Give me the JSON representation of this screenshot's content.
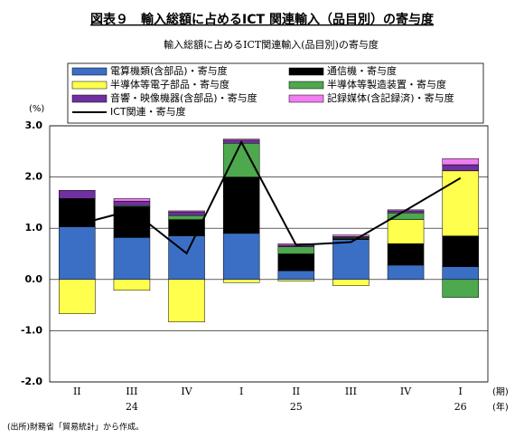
{
  "chart_data": {
    "type": "stacked-bar-line",
    "title": "図表９　輸入総額に占めるICT 関連輸入（品目別）の寄与度",
    "subtitle": "輸入総額に占めるICT関連輸入(品目別)の寄与度",
    "y_unit": "(%)",
    "x_unit": "(期)",
    "year_unit": "(年)",
    "source": "(出所)財務省「貿易統計」から作成。",
    "categories": [
      "II",
      "III",
      "IV",
      "I",
      "II",
      "III",
      "IV",
      "I"
    ],
    "years": [
      null,
      "24",
      null,
      null,
      "25",
      null,
      null,
      "26"
    ],
    "series": [
      {
        "name": "電算機類(含部品)・寄与度",
        "color": "#3b6fc5",
        "values": [
          1.03,
          0.82,
          0.85,
          0.9,
          0.17,
          0.78,
          0.28,
          0.25
        ]
      },
      {
        "name": "通信機・寄与度",
        "color": "#000000",
        "values": [
          0.55,
          0.6,
          0.32,
          1.1,
          0.33,
          0.02,
          0.42,
          0.6
        ]
      },
      {
        "name": "半導体等電子部品・寄与度",
        "color": "#ffff4d",
        "values": [
          -0.67,
          -0.21,
          -0.83,
          -0.06,
          -0.03,
          -0.12,
          0.47,
          1.27
        ]
      },
      {
        "name": "半導体等製造装置・寄与度",
        "color": "#4ea84e",
        "values": [
          0.0,
          0.02,
          0.08,
          0.66,
          0.14,
          0.02,
          0.13,
          -0.35
        ]
      },
      {
        "name": "音響・映像機器(含部品)・寄与度",
        "color": "#7030a0",
        "values": [
          0.16,
          0.09,
          0.07,
          0.06,
          0.03,
          0.02,
          0.04,
          0.12
        ]
      },
      {
        "name": "記録媒体(含記録済)・寄与度",
        "color": "#f07ef0",
        "values": [
          0.0,
          0.05,
          0.02,
          0.02,
          0.03,
          0.03,
          0.02,
          0.12
        ]
      }
    ],
    "line": {
      "name": "ICT関連・寄与度",
      "color": "#000000",
      "values": [
        1.07,
        1.35,
        0.51,
        2.68,
        0.67,
        0.73,
        1.35,
        1.98
      ]
    },
    "ylim": [
      -2.0,
      3.0
    ],
    "yticks": [
      {
        "value": -2.0,
        "label": "-2.0"
      },
      {
        "value": -1.0,
        "label": "-1.0"
      },
      {
        "value": 0,
        "label": "0.0"
      },
      {
        "value": 1.0,
        "label": "1.0"
      },
      {
        "value": 2.0,
        "label": "2.0"
      },
      {
        "value": 3.0,
        "label": "3.0"
      }
    ],
    "grid": true
  }
}
